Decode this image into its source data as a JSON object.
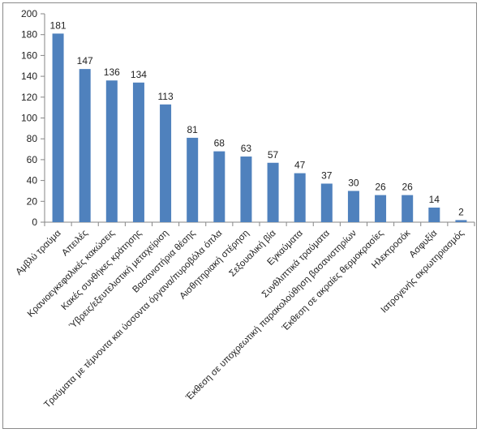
{
  "chart_data": {
    "type": "bar",
    "title": "",
    "xlabel": "",
    "ylabel": "",
    "ylim": [
      0,
      200
    ],
    "yticks": [
      0,
      20,
      40,
      60,
      80,
      100,
      120,
      140,
      160,
      180,
      200
    ],
    "grid": false,
    "legend": "none",
    "bar_color": "#4F81BD",
    "categories": [
      "Αμβλύ τραύμα",
      "Απειλές",
      "Κρανιοεγκεφαλικές κακώσεις",
      "Κακές συνθήκες κράτησης",
      "Ύβρεις/εξευτελιστική μεταχείριση",
      "Βασανιστήρια θέσης",
      "Τραύματα με τέμνοντα και ύσσοντα όργανα/πυροβόλα όπλα",
      "Αισθητηριακή στέρηση",
      "Σεξουαλική βία",
      "Εγκαύματα",
      "Συνθλιπτικά τραύματα",
      "Έκθεση σε υποχρεωτική παρακολούθηση βασανιστηρίων",
      "Έκθεση σε ακραίες θερμοκρασίες",
      "Ηλεκτροσόκ",
      "Ασφυξία",
      "Ιατρογενής ακρωτηριασμός"
    ],
    "values": [
      181,
      147,
      136,
      134,
      113,
      81,
      68,
      63,
      57,
      47,
      37,
      30,
      26,
      26,
      14,
      2
    ]
  }
}
